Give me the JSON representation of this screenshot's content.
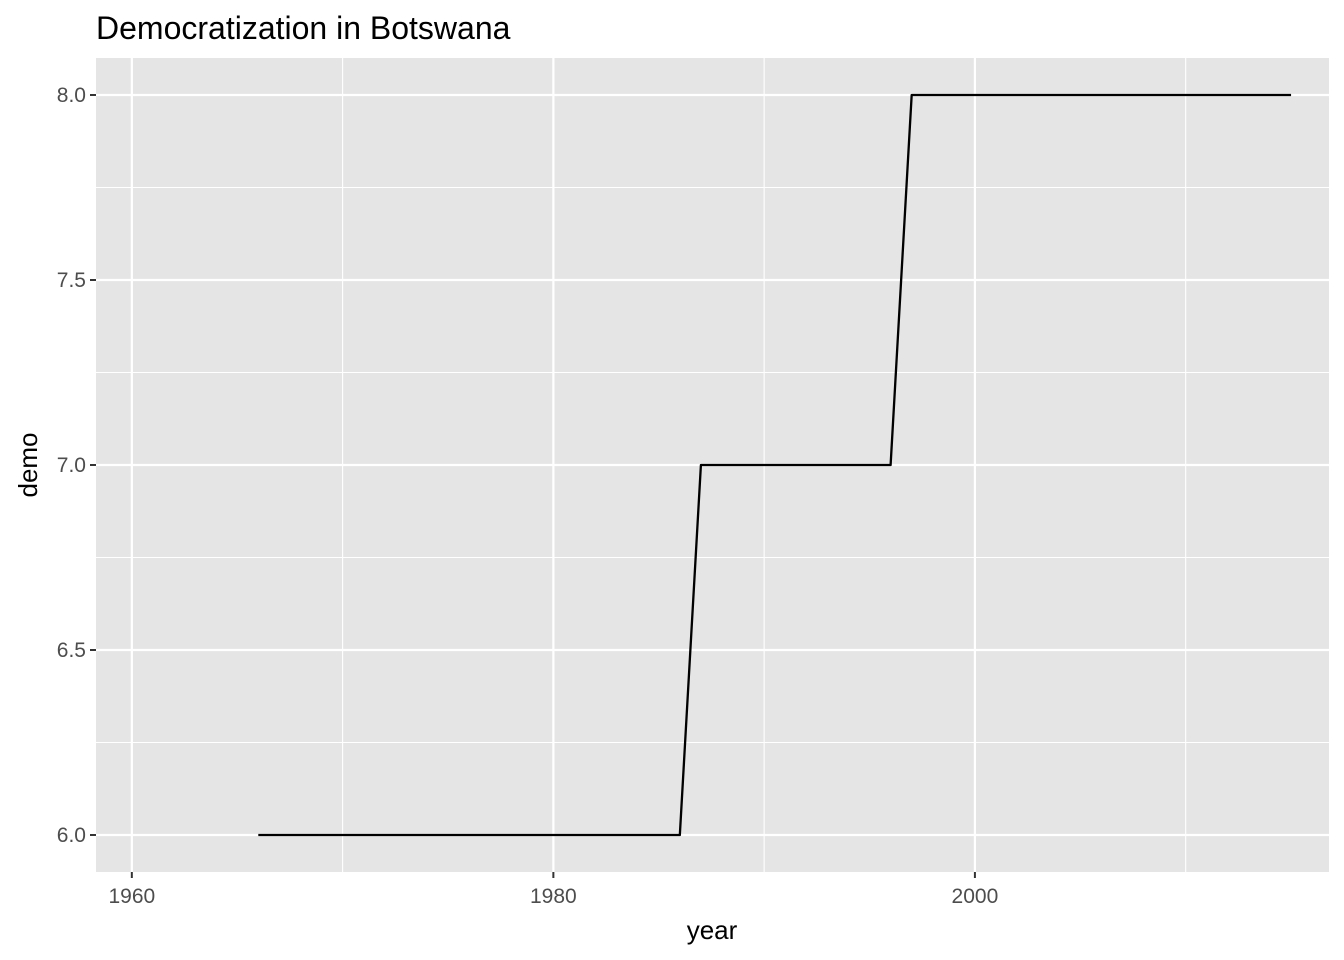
{
  "chart_data": {
    "type": "line",
    "title": "Democratization in Botswana",
    "xlabel": "year",
    "ylabel": "demo",
    "xlim": [
      1958.3,
      2016.8
    ],
    "ylim": [
      5.9,
      8.1
    ],
    "x_major_ticks": [
      1960,
      1980,
      2000
    ],
    "x_tick_labels": [
      "1960",
      "1980",
      "2000"
    ],
    "x_minor_ticks": [
      1970,
      1990,
      2010
    ],
    "y_major_ticks": [
      6.0,
      6.5,
      7.0,
      7.5,
      8.0
    ],
    "y_tick_labels": [
      "6.0",
      "6.5",
      "7.0",
      "7.5",
      "8.0"
    ],
    "y_minor_ticks": [
      6.25,
      6.75,
      7.25,
      7.75
    ],
    "grid": true,
    "legend": "none",
    "background_color": "#e5e5e5",
    "line_color": "#000000",
    "series": [
      {
        "x": [
          1966,
          1967,
          1968,
          1969,
          1970,
          1971,
          1972,
          1973,
          1974,
          1975,
          1976,
          1977,
          1978,
          1979,
          1980,
          1981,
          1982,
          1983,
          1984,
          1985,
          1986,
          1987,
          1988,
          1989,
          1990,
          1991,
          1992,
          1993,
          1994,
          1995,
          1996,
          1997,
          1998,
          1999,
          2000,
          2001,
          2002,
          2003,
          2004,
          2005,
          2006,
          2007,
          2008,
          2009,
          2010,
          2011,
          2012,
          2013,
          2014,
          2015
        ],
        "y": [
          6,
          6,
          6,
          6,
          6,
          6,
          6,
          6,
          6,
          6,
          6,
          6,
          6,
          6,
          6,
          6,
          6,
          6,
          6,
          6,
          6,
          7,
          7,
          7,
          7,
          7,
          7,
          7,
          7,
          7,
          7,
          8,
          8,
          8,
          8,
          8,
          8,
          8,
          8,
          8,
          8,
          8,
          8,
          8,
          8,
          8,
          8,
          8,
          8,
          8
        ]
      }
    ]
  }
}
